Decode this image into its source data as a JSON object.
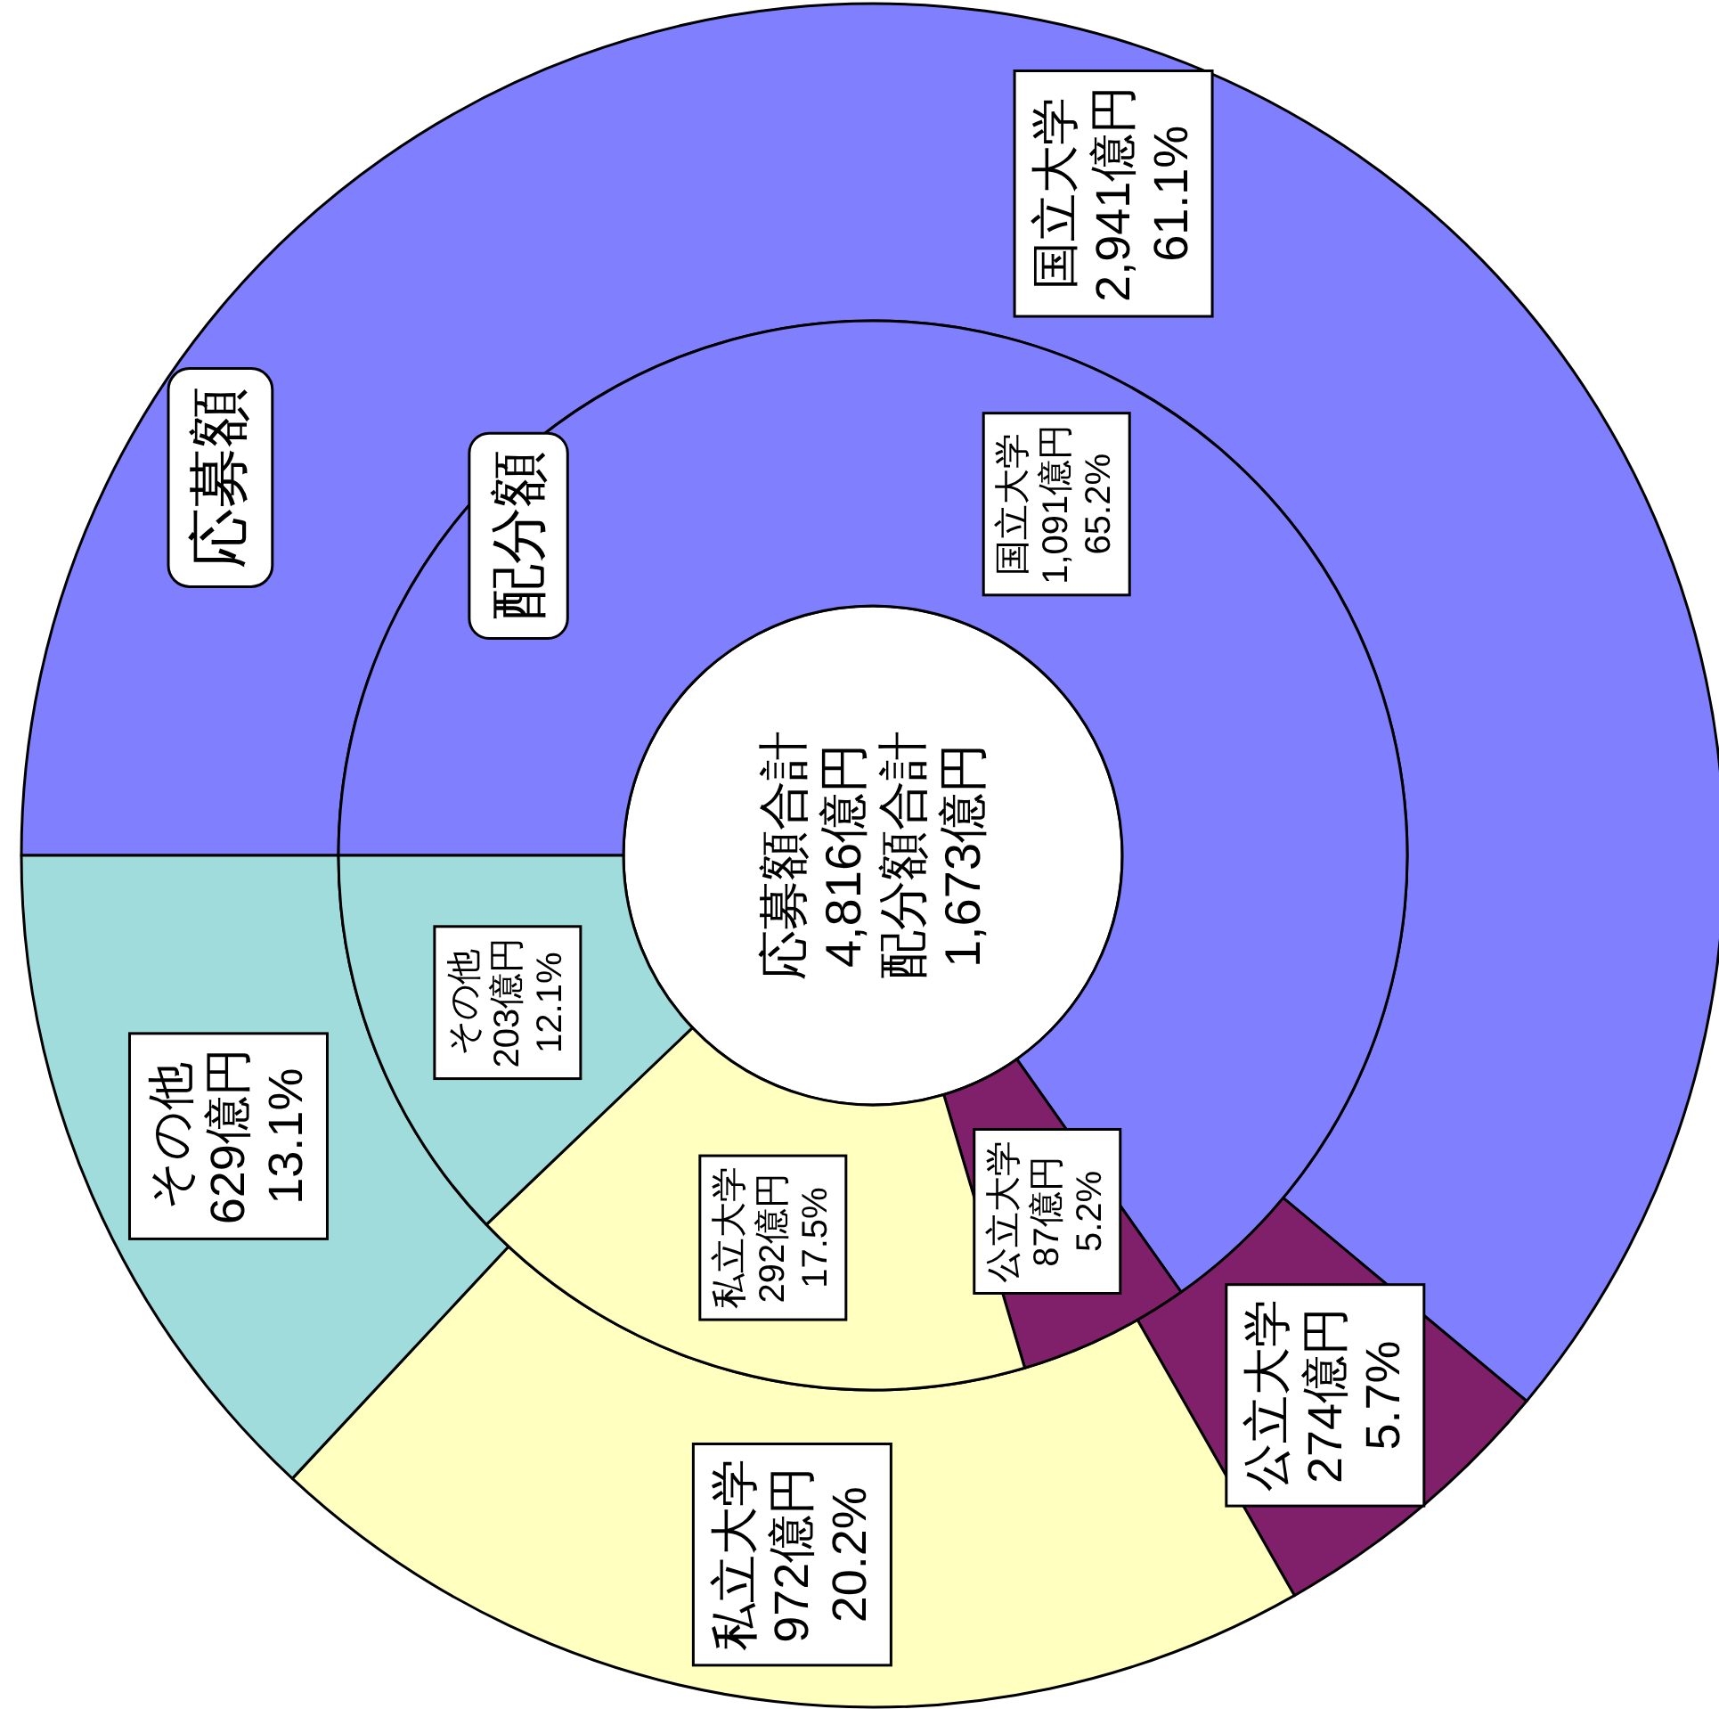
{
  "chart_data": [
    {
      "type": "donut",
      "title": "応募額",
      "categories": [
        "国立大学",
        "公立大学",
        "私立大学",
        "その他"
      ],
      "values": [
        2941,
        274,
        972,
        629
      ],
      "value_labels": [
        "2,941億円\n61.1%",
        "274億円\n5.7%",
        "972億円\n20.2%",
        "629億円\n13.1%"
      ],
      "colors": [
        "#8080ff",
        "#80206a",
        "#ffffc0",
        "#a0dcdc"
      ],
      "annotations": [
        "応募額合計",
        "4,816億円"
      ]
    },
    {
      "type": "donut",
      "title": "配分額",
      "categories": [
        "国立大学",
        "公立大学",
        "私立大学",
        "その他"
      ],
      "values": [
        1091,
        87,
        292,
        203
      ],
      "value_labels": [
        "1,091億円\n65.2%",
        "87億円\n5.2%",
        "292億円\n17.5%",
        "203億円\n12.1%"
      ],
      "colors": [
        "#8080ff",
        "#80206a",
        "#ffffc0",
        "#a0dcdc"
      ],
      "annotations": [
        "配分額合計",
        "1,673億円"
      ]
    }
  ]
}
